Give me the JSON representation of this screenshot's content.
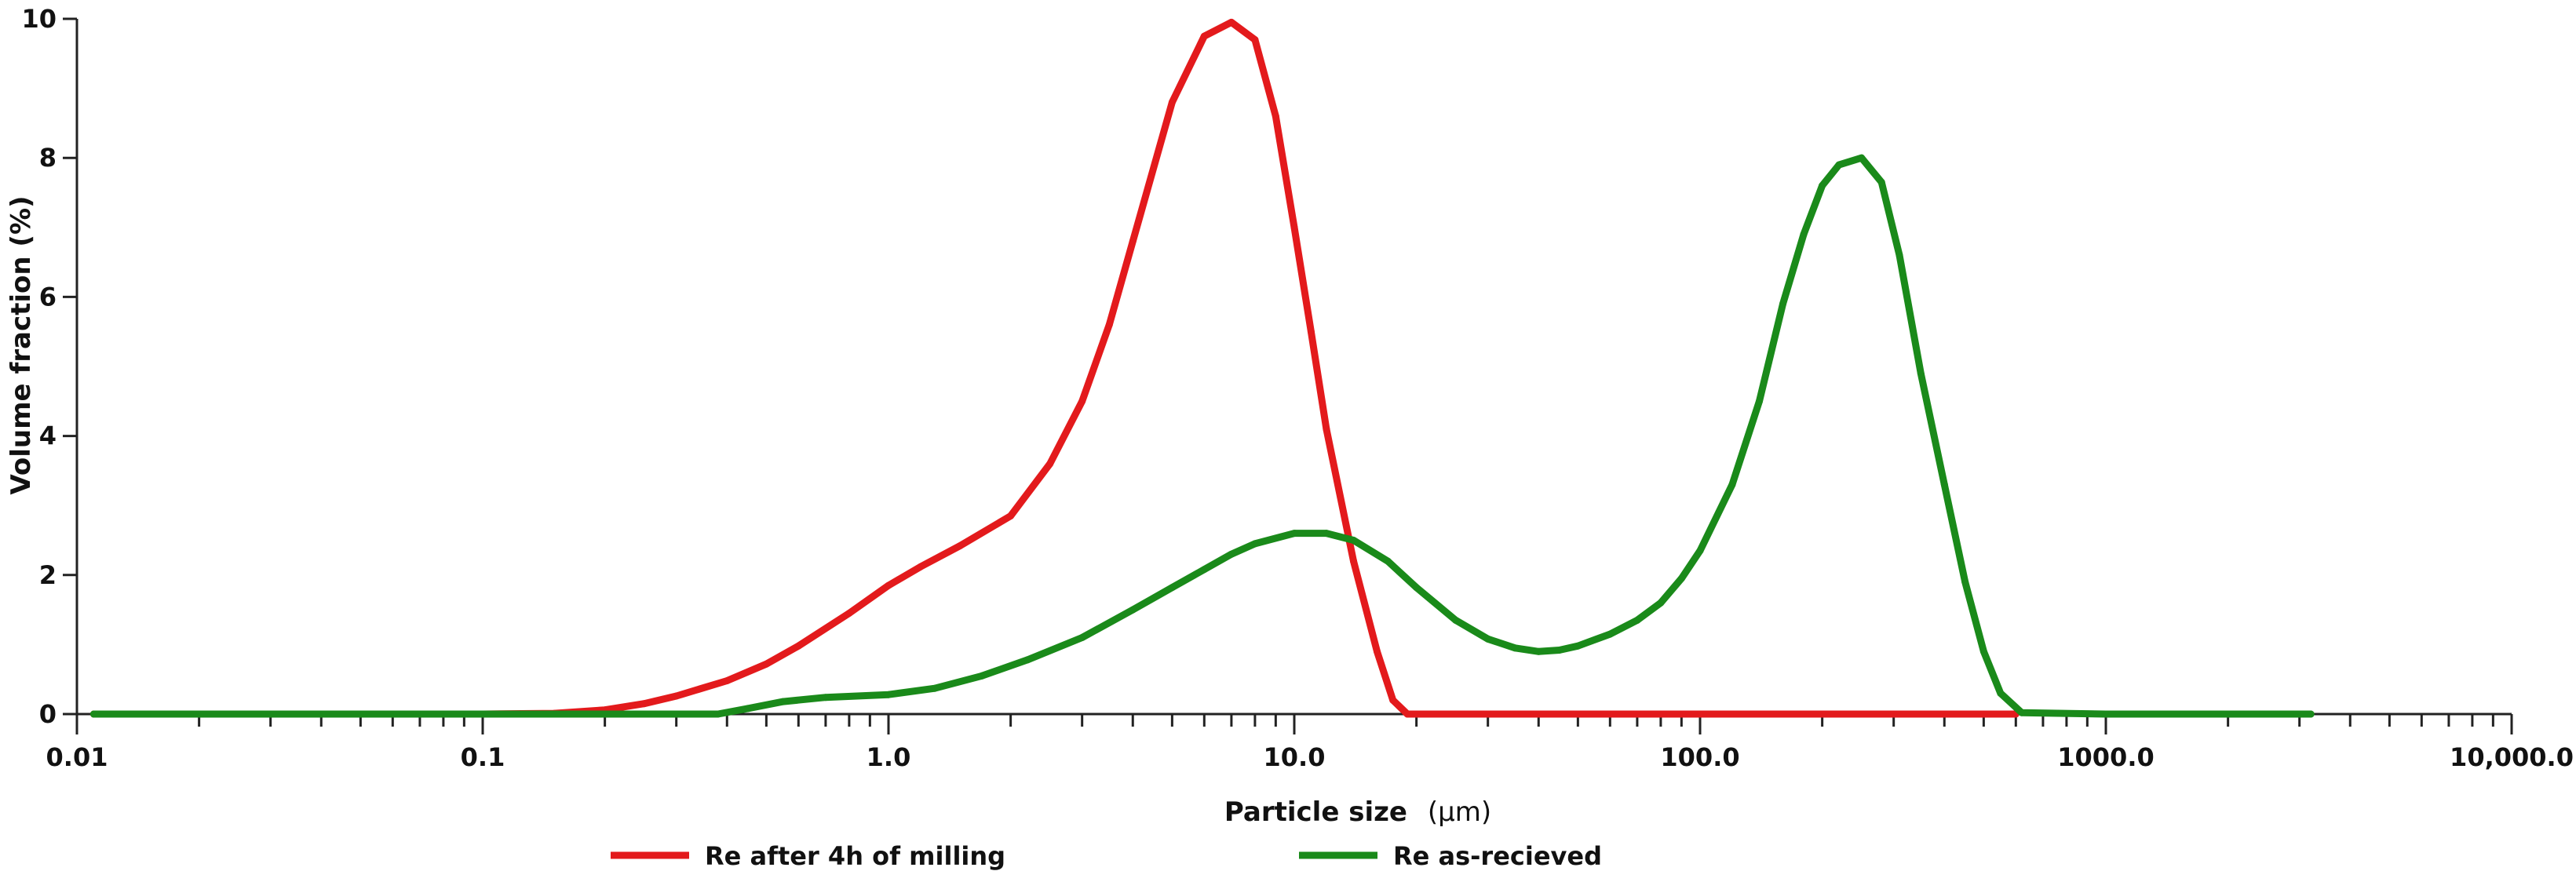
{
  "chart_data": {
    "type": "line",
    "xscale": "log",
    "xlabel": "Particle size",
    "xlabel_unit": "(µm)",
    "ylabel": "Volume fraction (%)",
    "xlim": [
      0.01,
      10000
    ],
    "ylim": [
      0,
      10
    ],
    "x_ticks": [
      {
        "value": 0.01,
        "label": "0.01"
      },
      {
        "value": 0.1,
        "label": "0.1"
      },
      {
        "value": 1,
        "label": "1.0"
      },
      {
        "value": 10,
        "label": "10.0"
      },
      {
        "value": 100,
        "label": "100.0"
      },
      {
        "value": 1000,
        "label": "1000.0"
      },
      {
        "value": 10000,
        "label": "10,000.0"
      }
    ],
    "y_ticks": [
      {
        "value": 0,
        "label": "0"
      },
      {
        "value": 2,
        "label": "2"
      },
      {
        "value": 4,
        "label": "4"
      },
      {
        "value": 6,
        "label": "6"
      },
      {
        "value": 8,
        "label": "8"
      },
      {
        "value": 10,
        "label": "10"
      }
    ],
    "legend_position": "bottom",
    "series": [
      {
        "name": "Re after 4h of milling",
        "color": "#e31a1c",
        "x": [
          0.011,
          0.05,
          0.1,
          0.15,
          0.2,
          0.25,
          0.3,
          0.4,
          0.5,
          0.6,
          0.8,
          1.0,
          1.2,
          1.5,
          2.0,
          2.5,
          3.0,
          3.5,
          4.0,
          5.0,
          6.0,
          7.0,
          8.0,
          9.0,
          10.0,
          11.0,
          12.0,
          14.0,
          16.0,
          17.5,
          19.0,
          30,
          100,
          300,
          600
        ],
        "y": [
          0,
          0,
          0,
          0.01,
          0.06,
          0.15,
          0.26,
          0.48,
          0.72,
          0.98,
          1.45,
          1.85,
          2.12,
          2.42,
          2.85,
          3.6,
          4.5,
          5.6,
          6.8,
          8.8,
          9.75,
          9.95,
          9.7,
          8.6,
          7.0,
          5.5,
          4.1,
          2.2,
          0.9,
          0.2,
          0.0,
          0,
          0,
          0,
          0
        ]
      },
      {
        "name": "Re as-recieved",
        "color": "#1a8a1a",
        "x": [
          0.011,
          0.1,
          0.2,
          0.3,
          0.38,
          0.45,
          0.55,
          0.7,
          1.0,
          1.3,
          1.7,
          2.2,
          3.0,
          4.0,
          5.0,
          6.0,
          7.0,
          8.0,
          10.0,
          12.0,
          14.0,
          17.0,
          20.0,
          25.0,
          30.0,
          35.0,
          40.0,
          45.0,
          50.0,
          60.0,
          70.0,
          80.0,
          90.0,
          100.0,
          120.0,
          140.0,
          160.0,
          180.0,
          200.0,
          220.0,
          250.0,
          280.0,
          310.0,
          350.0,
          400.0,
          450.0,
          500.0,
          550.0,
          620.0,
          1000.0,
          3200.0
        ],
        "y": [
          0,
          0,
          0,
          0,
          0,
          0.08,
          0.18,
          0.24,
          0.28,
          0.37,
          0.55,
          0.78,
          1.1,
          1.5,
          1.82,
          2.08,
          2.3,
          2.45,
          2.6,
          2.6,
          2.5,
          2.2,
          1.82,
          1.35,
          1.08,
          0.95,
          0.9,
          0.92,
          0.98,
          1.15,
          1.35,
          1.6,
          1.95,
          2.35,
          3.3,
          4.5,
          5.9,
          6.9,
          7.6,
          7.9,
          8.0,
          7.65,
          6.6,
          4.9,
          3.3,
          1.9,
          0.9,
          0.3,
          0.02,
          0,
          0
        ]
      }
    ]
  }
}
